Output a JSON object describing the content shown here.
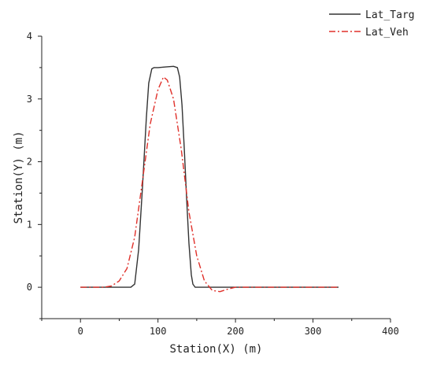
{
  "chart_data": {
    "type": "line",
    "title": "",
    "xlabel": "Station(X) (m)",
    "ylabel": "Station(Y) (m)",
    "xlim": [
      -50,
      400
    ],
    "ylim": [
      -0.5,
      4
    ],
    "xticks": [
      0,
      100,
      200,
      300,
      400
    ],
    "yticks": [
      0,
      1,
      2,
      3,
      4
    ],
    "grid": false,
    "legend_position": "top-right",
    "series": [
      {
        "name": "Lat_Targ",
        "color": "#333333",
        "style": "solid",
        "x": [
          0,
          50,
          65,
          70,
          75,
          80,
          85,
          88,
          92,
          95,
          100,
          110,
          120,
          125,
          128,
          131,
          134,
          137,
          140,
          143,
          145,
          148,
          155,
          200,
          250,
          300,
          333
        ],
        "y": [
          0,
          0,
          0,
          0.05,
          0.6,
          1.6,
          2.7,
          3.25,
          3.48,
          3.5,
          3.5,
          3.51,
          3.52,
          3.5,
          3.35,
          2.9,
          2.2,
          1.4,
          0.7,
          0.2,
          0.05,
          0,
          0,
          0,
          0,
          0,
          0
        ]
      },
      {
        "name": "Lat_Veh",
        "color": "#e0302a",
        "style": "dashdot",
        "x": [
          0,
          30,
          40,
          50,
          60,
          70,
          80,
          90,
          100,
          107,
          112,
          120,
          130,
          140,
          150,
          160,
          170,
          180,
          190,
          200,
          250,
          300,
          333
        ],
        "y": [
          0,
          0,
          0.02,
          0.1,
          0.3,
          0.8,
          1.7,
          2.6,
          3.15,
          3.35,
          3.3,
          3.0,
          2.2,
          1.2,
          0.5,
          0.1,
          -0.05,
          -0.07,
          -0.03,
          0,
          0,
          0,
          0
        ]
      }
    ]
  }
}
